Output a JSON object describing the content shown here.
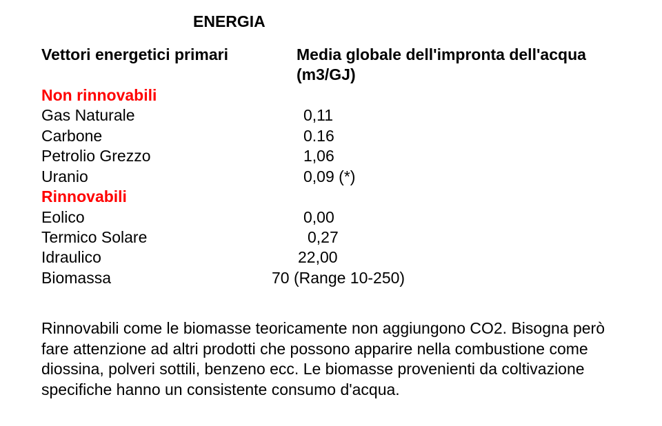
{
  "title": "ENERGIA",
  "header": {
    "left": "Vettori energetici primari",
    "right": "Media globale dell'impronta dell'acqua (m3/GJ)"
  },
  "sections": {
    "nonRenewable": {
      "label": "Non rinnovabili",
      "rows": [
        {
          "name": "Gas Naturale",
          "value": "0,11"
        },
        {
          "name": "Carbone",
          "value": "0.16"
        },
        {
          "name": "Petrolio Grezzo",
          "value": "1,06"
        },
        {
          "name": "Uranio",
          "value": "0,09 (*)"
        }
      ]
    },
    "renewable": {
      "label": "Rinnovabili",
      "rows": [
        {
          "name": "Eolico",
          "value": "0,00"
        },
        {
          "name": "Termico Solare",
          "value": "0,27"
        },
        {
          "name": "Idraulico",
          "value": "22,00"
        },
        {
          "name": "Biomassa",
          "value": "70 (Range 10-250)"
        }
      ]
    }
  },
  "paragraph": "Rinnovabili come le biomasse teoricamente non aggiungono CO2. Bisogna però fare attenzione ad altri prodotti che possono apparire nella combustione come diossina, polveri sottili, benzeno ecc. Le biomasse provenienti da coltivazione specifiche hanno un consistente consumo d'acqua."
}
